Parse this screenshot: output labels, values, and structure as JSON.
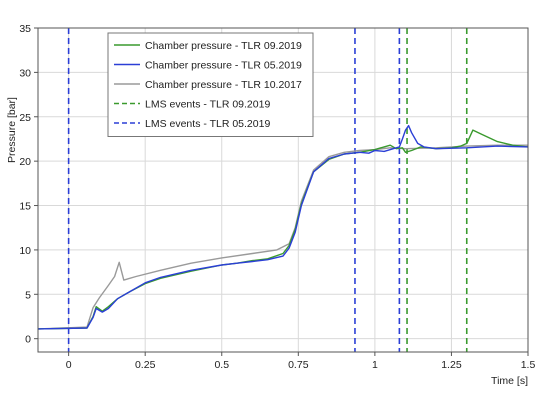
{
  "chart_data": {
    "type": "line",
    "title": "",
    "xlabel": "Time [s]",
    "ylabel": "Pressure [bar]",
    "xlim": [
      -0.1,
      1.5
    ],
    "ylim": [
      -1.5,
      35
    ],
    "x_ticks": [
      0,
      0.25,
      0.5,
      0.75,
      1,
      1.25,
      1.5
    ],
    "x_tick_labels": [
      "0",
      "0.25",
      "0.5",
      "0.75",
      "1",
      "1.25",
      "1.5"
    ],
    "y_ticks": [
      0,
      5,
      10,
      15,
      20,
      25,
      30,
      35
    ],
    "y_tick_labels": [
      "0",
      "5",
      "10",
      "15",
      "20",
      "25",
      "30",
      "35"
    ],
    "grid": true,
    "legend_position": "top-left",
    "series": [
      {
        "name": "Chamber pressure - TLR 09.2019",
        "color": "#3a9a2e",
        "style": "solid",
        "x": [
          -0.1,
          0.06,
          0.08,
          0.09,
          0.11,
          0.13,
          0.16,
          0.2,
          0.25,
          0.3,
          0.4,
          0.5,
          0.55,
          0.6,
          0.65,
          0.7,
          0.72,
          0.74,
          0.76,
          0.8,
          0.85,
          0.9,
          0.95,
          1.0,
          1.03,
          1.05,
          1.07,
          1.09,
          1.1,
          1.12,
          1.15,
          1.2,
          1.25,
          1.28,
          1.3,
          1.32,
          1.35,
          1.4,
          1.45,
          1.5
        ],
        "y": [
          1.1,
          1.2,
          2.5,
          3.6,
          3.1,
          3.6,
          4.5,
          5.3,
          6.2,
          6.8,
          7.6,
          8.3,
          8.5,
          8.8,
          9.0,
          9.6,
          10.5,
          12.3,
          15.2,
          18.8,
          20.2,
          20.8,
          21.0,
          21.3,
          21.6,
          21.8,
          21.4,
          21.5,
          21.0,
          21.2,
          21.6,
          21.4,
          21.5,
          21.7,
          22.0,
          23.5,
          23.0,
          22.2,
          21.8,
          21.6
        ]
      },
      {
        "name": "Chamber pressure - TLR 05.2019",
        "color": "#2b3fd6",
        "style": "solid",
        "x": [
          -0.1,
          0.06,
          0.08,
          0.09,
          0.11,
          0.13,
          0.16,
          0.2,
          0.25,
          0.3,
          0.4,
          0.5,
          0.55,
          0.6,
          0.65,
          0.7,
          0.72,
          0.74,
          0.76,
          0.8,
          0.85,
          0.9,
          0.95,
          0.98,
          1.0,
          1.03,
          1.06,
          1.08,
          1.09,
          1.1,
          1.11,
          1.12,
          1.14,
          1.16,
          1.2,
          1.3,
          1.4,
          1.5
        ],
        "y": [
          1.1,
          1.2,
          2.4,
          3.4,
          3.0,
          3.4,
          4.5,
          5.3,
          6.3,
          6.9,
          7.7,
          8.3,
          8.5,
          8.7,
          8.9,
          9.3,
          10.2,
          12.0,
          15.0,
          18.8,
          20.3,
          20.8,
          21.0,
          20.9,
          21.2,
          21.1,
          21.4,
          21.6,
          22.5,
          23.5,
          24.0,
          23.2,
          22.0,
          21.6,
          21.4,
          21.5,
          21.7,
          21.6
        ]
      },
      {
        "name": "Chamber pressure - TLR 10.2017",
        "color": "#9a9a9a",
        "style": "solid",
        "x": [
          -0.1,
          0.06,
          0.08,
          0.1,
          0.13,
          0.15,
          0.165,
          0.18,
          0.22,
          0.3,
          0.4,
          0.5,
          0.6,
          0.68,
          0.72,
          0.74,
          0.76,
          0.8,
          0.85,
          0.9,
          0.95,
          1.0,
          1.05,
          1.1,
          1.2,
          1.3,
          1.4,
          1.5
        ],
        "y": [
          1.1,
          1.3,
          3.5,
          4.6,
          6.0,
          7.0,
          8.6,
          6.6,
          7.0,
          7.7,
          8.5,
          9.1,
          9.6,
          10.0,
          10.7,
          12.5,
          15.5,
          19.0,
          20.5,
          21.0,
          21.2,
          21.3,
          21.5,
          21.4,
          21.5,
          21.7,
          21.8,
          21.8
        ]
      }
    ],
    "event_series": [
      {
        "name": "LMS events - TLR 09.2019",
        "color": "#3a9a2e",
        "style": "dashed",
        "x_values": [
          1.105,
          1.3
        ]
      },
      {
        "name": "LMS events - TLR 05.2019",
        "color": "#2b3fd6",
        "style": "dashed",
        "x_values": [
          0.0,
          0.935,
          1.08
        ]
      }
    ]
  }
}
